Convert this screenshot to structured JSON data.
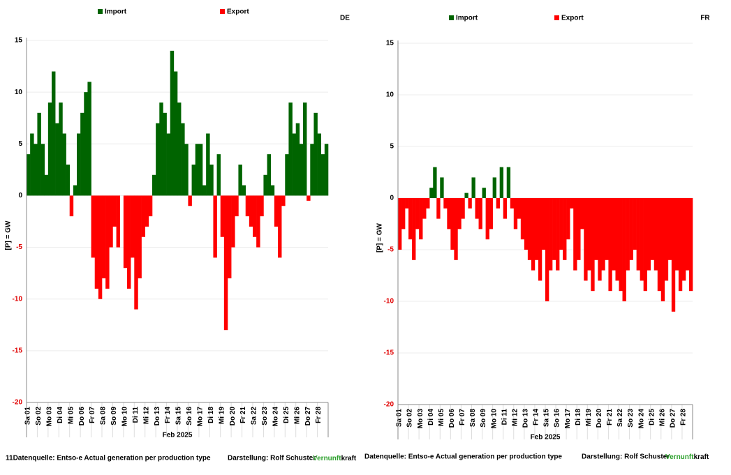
{
  "chart_data": [
    {
      "type": "area",
      "title": "DE",
      "ylabel": "[P] = GW",
      "xlabel": "Feb 2025",
      "legend": [
        {
          "name": "Import",
          "color": "#006400"
        },
        {
          "name": "Export",
          "color": "#ff0000"
        }
      ],
      "categories": [
        "Sa 01",
        null,
        null,
        "So 02",
        null,
        null,
        "Mo 03",
        null,
        null,
        "Di 04",
        null,
        null,
        "Mi 05",
        null,
        null,
        "Do 06",
        null,
        null,
        "Fr 07",
        null,
        null,
        "Sa 08",
        null,
        null,
        "So 09",
        null,
        null,
        "Mo 10",
        null,
        null,
        "Di 11",
        null,
        null,
        "Mi 12",
        null,
        null,
        "Do 13",
        null,
        null,
        "Fr 14",
        null,
        null,
        "Sa 15",
        null,
        null,
        "So 16",
        null,
        null,
        "Mo 17",
        null,
        null,
        "Di 18",
        null,
        null,
        "Mi 19",
        null,
        null,
        "Do 20",
        null,
        null,
        "Fr 21",
        null,
        null,
        "Sa 22",
        null,
        null,
        "So 23",
        null,
        null,
        "Mo 24",
        null,
        null,
        "Di 25",
        null,
        null,
        "Mi 26",
        null,
        null,
        "Do 27",
        null,
        null,
        "Fr 28",
        null,
        null
      ],
      "values": [
        4,
        6,
        5,
        8,
        5,
        2,
        9,
        12,
        7,
        9,
        6,
        3,
        -2,
        1,
        6,
        8,
        10,
        11,
        -6,
        -9,
        -10,
        -8,
        -9,
        -5,
        -3,
        -5,
        0,
        -7,
        -9,
        -6,
        -11,
        -8,
        -4,
        -3,
        -2,
        2,
        7,
        9,
        8,
        6,
        14,
        12,
        9,
        7,
        5,
        -1,
        3,
        5,
        5,
        1,
        6,
        3,
        -6,
        4,
        -4,
        -13,
        -8,
        -5,
        -2,
        3,
        1,
        -2,
        -3,
        -4,
        -5,
        -2,
        2,
        4,
        1,
        -3,
        -6,
        -1,
        4,
        9,
        6,
        7,
        5,
        9,
        -0.5,
        5,
        8,
        6,
        4,
        5
      ],
      "ylim": [
        -20,
        15
      ],
      "yticks": [
        15,
        10,
        5,
        0,
        -5,
        -10,
        -15,
        -20
      ],
      "grid": true
    },
    {
      "type": "area",
      "title": "FR",
      "ylabel": "[P] = GW",
      "xlabel": "Feb 2025",
      "legend": [
        {
          "name": "Import",
          "color": "#006400"
        },
        {
          "name": "Export",
          "color": "#ff0000"
        }
      ],
      "categories": [
        "Sa 01",
        null,
        null,
        "So 02",
        null,
        null,
        "Mo 03",
        null,
        null,
        "Di 04",
        null,
        null,
        "Mi 05",
        null,
        null,
        "Do 06",
        null,
        null,
        "Fr 07",
        null,
        null,
        "Sa 08",
        null,
        null,
        "So 09",
        null,
        null,
        "Mo 10",
        null,
        null,
        "Di 11",
        null,
        null,
        "Mi 12",
        null,
        null,
        "Do 13",
        null,
        null,
        "Fr 14",
        null,
        null,
        "Sa 15",
        null,
        null,
        "So 16",
        null,
        null,
        "Mo 17",
        null,
        null,
        "Di 18",
        null,
        null,
        "Mi 19",
        null,
        null,
        "Do 20",
        null,
        null,
        "Fr 21",
        null,
        null,
        "Sa 22",
        null,
        null,
        "So 23",
        null,
        null,
        "Mo 24",
        null,
        null,
        "Di 25",
        null,
        null,
        "Mi 26",
        null,
        null,
        "Do 27",
        null,
        null,
        "Fr 28",
        null,
        null
      ],
      "values": [
        -5,
        -3,
        -1,
        -4,
        -6,
        -3,
        -4,
        -2,
        -1,
        1,
        3,
        -2,
        2,
        -1,
        -3,
        -5,
        -6,
        -3,
        -2,
        0.5,
        -1,
        2,
        -2,
        -3,
        1,
        -4,
        -3,
        2,
        -1,
        3,
        -2,
        3,
        -1,
        -3,
        -2,
        -4,
        -5,
        -6,
        -7,
        -6,
        -8,
        -5,
        -10,
        -7,
        -6,
        -7,
        -5,
        -6,
        -4,
        -1,
        -7,
        -6,
        -3,
        -8,
        -7,
        -9,
        -6,
        -8,
        -7,
        -6,
        -9,
        -7,
        -8,
        -9,
        -10,
        -7,
        -6,
        -5,
        -7,
        -8,
        -9,
        -7,
        -6,
        -7,
        -9,
        -10,
        -8,
        -6,
        -11,
        -7,
        -9,
        -8,
        -7,
        -9
      ],
      "ylim": [
        -20,
        15
      ],
      "yticks": [
        15,
        10,
        5,
        0,
        -5,
        -10,
        -15,
        -20
      ],
      "grid": true
    }
  ],
  "footers": [
    {
      "source": "11Datenquelle: Entso-e  Actual generation per production type",
      "credit": "Darstellung: Rolf Schuster",
      "brand_a": "Vernunft",
      "brand_b": "kraft"
    },
    {
      "source": "Datenquelle: Entso-e  Actual generation per production type",
      "credit": "Darstellung: Rolf Schuster",
      "brand_a": "Vernunft",
      "brand_b": "kraft"
    }
  ]
}
